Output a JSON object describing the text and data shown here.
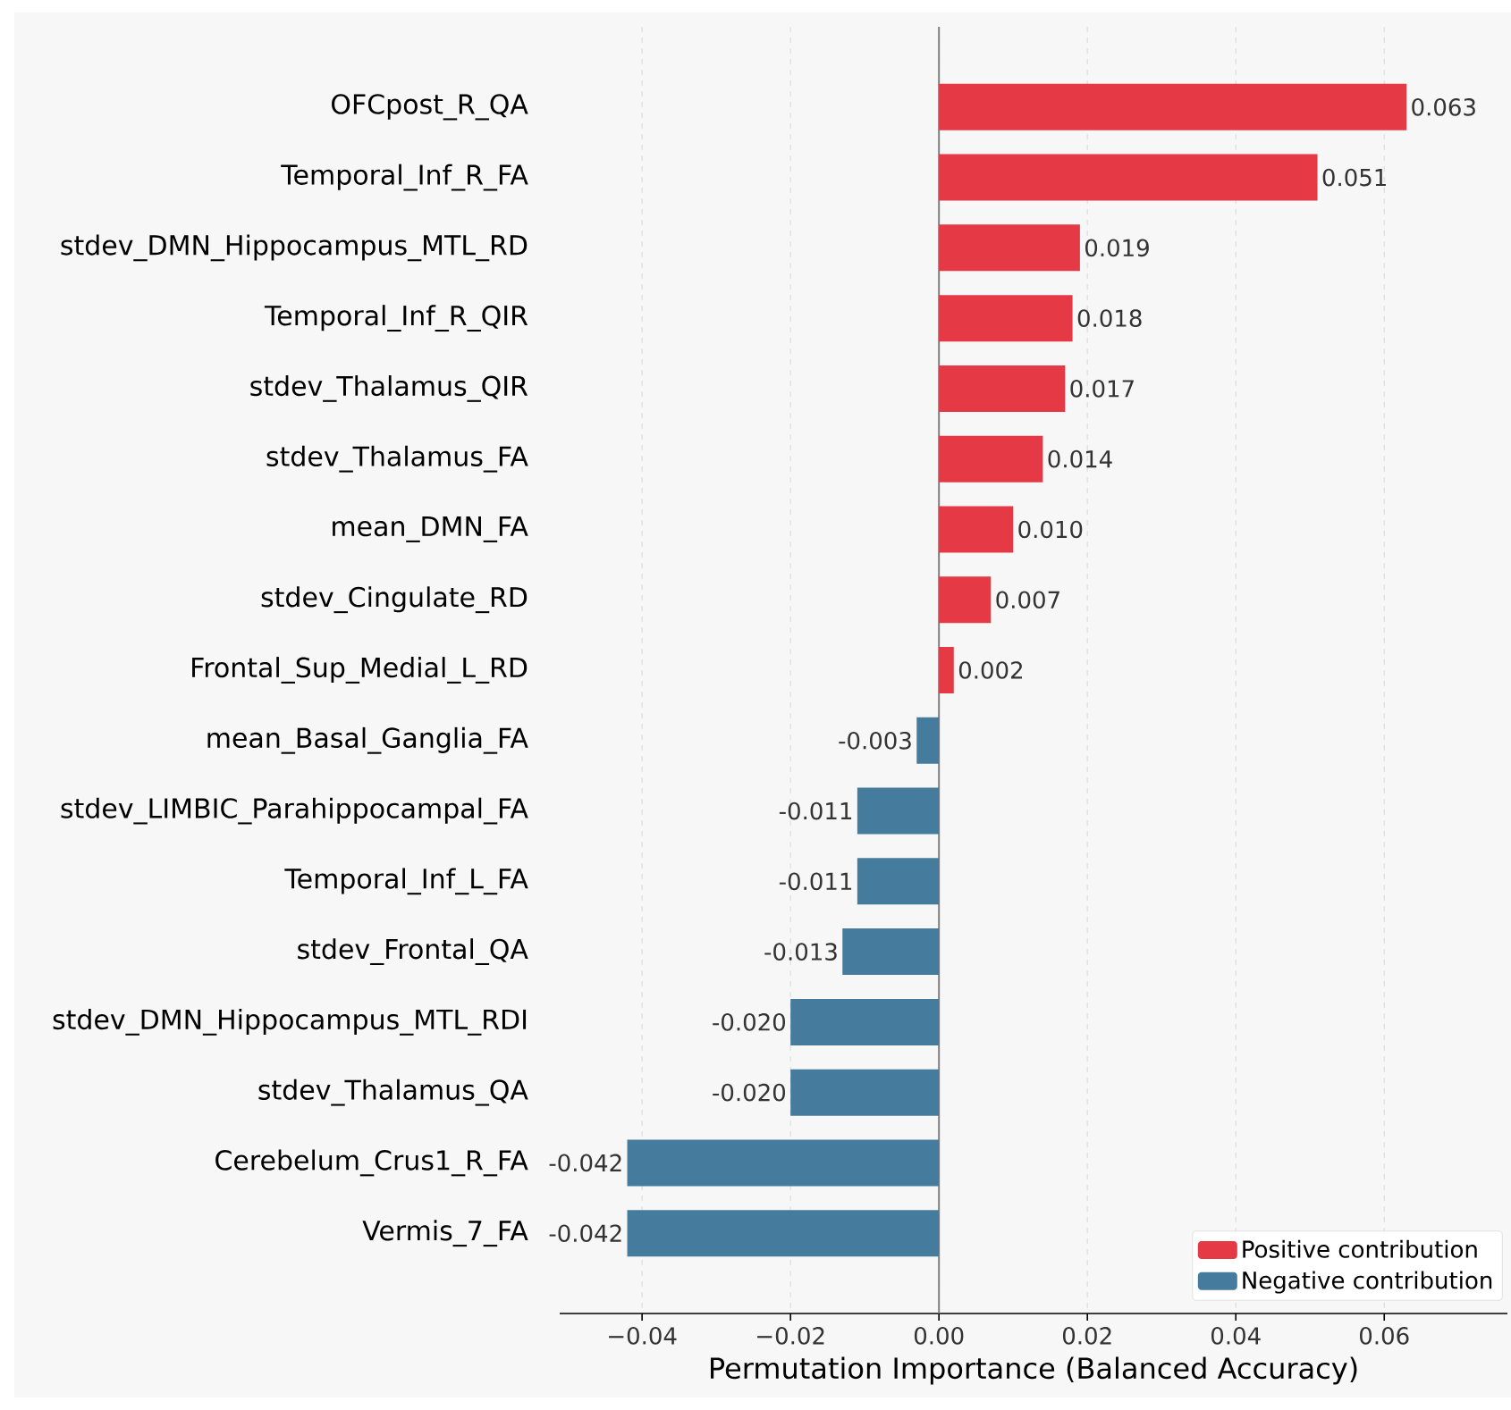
{
  "chart_data": {
    "type": "bar",
    "orientation": "horizontal",
    "xlabel": "Permutation Importance (Balanced Accuracy)",
    "categories": [
      "OFCpost_R_QA",
      "Temporal_Inf_R_FA",
      "stdev_DMN_Hippocampus_MTL_RD",
      "Temporal_Inf_R_QIR",
      "stdev_Thalamus_QIR",
      "stdev_Thalamus_FA",
      "mean_DMN_FA",
      "stdev_Cingulate_RD",
      "Frontal_Sup_Medial_L_RD",
      "mean_Basal_Ganglia_FA",
      "stdev_LIMBIC_Parahippocampal_FA",
      "Temporal_Inf_L_FA",
      "stdev_Frontal_QA",
      "stdev_DMN_Hippocampus_MTL_RDI",
      "stdev_Thalamus_QA",
      "Cerebelum_Crus1_R_FA",
      "Vermis_7_FA"
    ],
    "series": [
      {
        "name": "Positive contribution",
        "color": "#e63946",
        "values": [
          0.063,
          0.051,
          0.019,
          0.018,
          0.017,
          0.014,
          0.01,
          0.007,
          0.002,
          null,
          null,
          null,
          null,
          null,
          null,
          null,
          null
        ],
        "value_labels": [
          "0.063",
          "0.051",
          "0.019",
          "0.018",
          "0.017",
          "0.014",
          "0.010",
          "0.007",
          "0.002",
          null,
          null,
          null,
          null,
          null,
          null,
          null,
          null
        ]
      },
      {
        "name": "Negative contribution",
        "color": "#457b9d",
        "values": [
          null,
          null,
          null,
          null,
          null,
          null,
          null,
          null,
          null,
          -0.003,
          -0.011,
          -0.011,
          -0.013,
          -0.02,
          -0.02,
          -0.042,
          -0.042
        ],
        "value_labels": [
          null,
          null,
          null,
          null,
          null,
          null,
          null,
          null,
          null,
          "-0.003",
          "-0.011",
          "-0.011",
          "-0.013",
          "-0.020",
          "-0.020",
          "-0.042",
          "-0.042"
        ]
      }
    ],
    "xlim": [
      -0.0511,
      0.0766
    ],
    "xticks": [
      {
        "value": -0.04,
        "label": "−0.04"
      },
      {
        "value": -0.02,
        "label": "−0.02"
      },
      {
        "value": 0,
        "label": "0.00"
      },
      {
        "value": 0.02,
        "label": "0.02"
      },
      {
        "value": 0.04,
        "label": "0.04"
      },
      {
        "value": 0.06,
        "label": "0.06"
      }
    ],
    "ref_lines": [
      {
        "axis": "x",
        "value": 0,
        "color": "#808080"
      }
    ],
    "grid": "x",
    "legend": "bottom right"
  }
}
